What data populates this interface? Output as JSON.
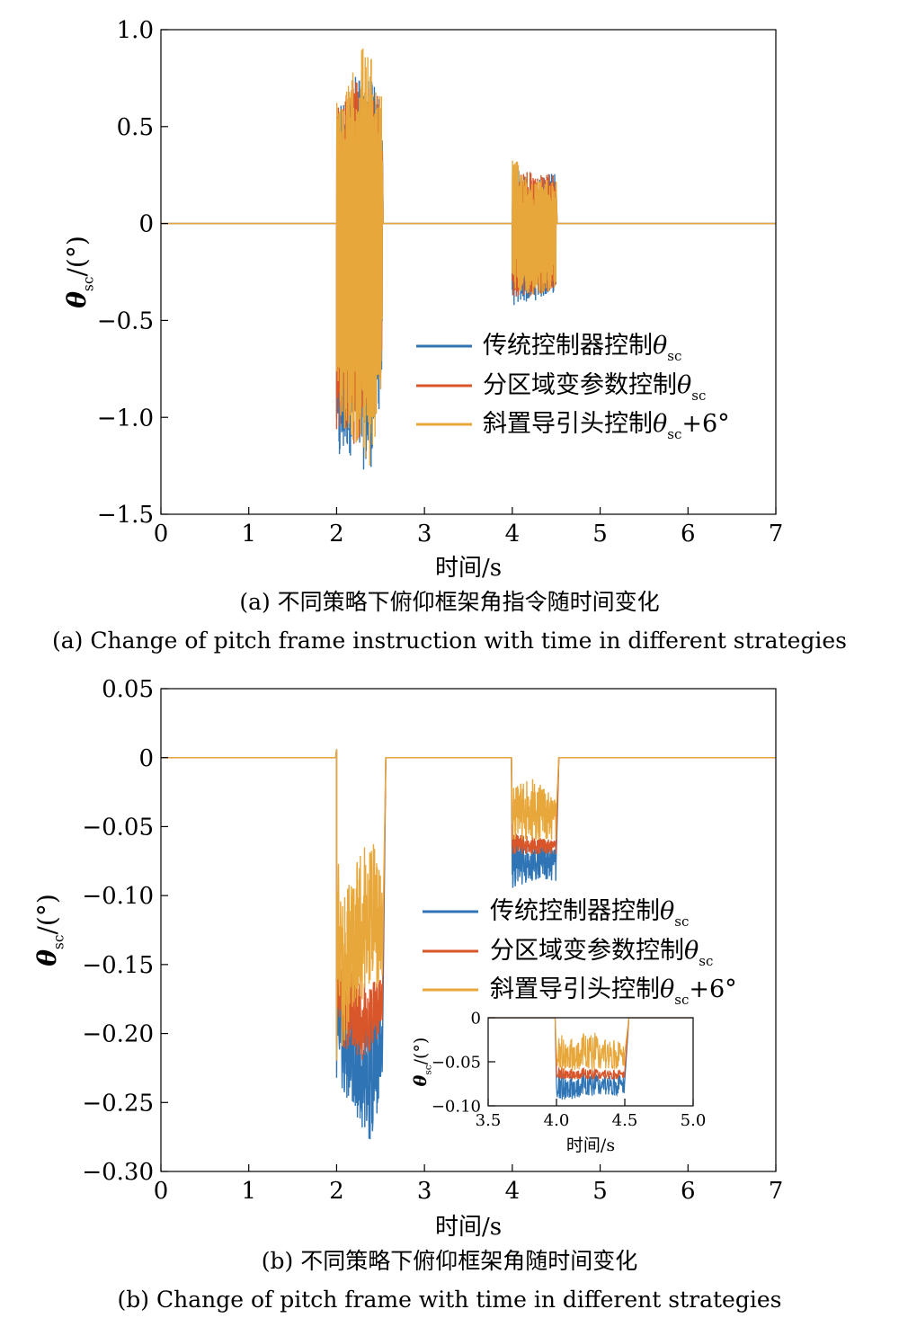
{
  "colors": {
    "series1": "#2f75b5",
    "series2": "#d8562a",
    "series3": "#e7a73a"
  },
  "legend": [
    {
      "base": "传统控制器控制",
      "sym": "θ",
      "sub": "sc",
      "suffix": ""
    },
    {
      "base": "分区域变参数控制",
      "sym": "θ",
      "sub": "sc",
      "suffix": ""
    },
    {
      "base": "斜置导引头控制",
      "sym": "θ",
      "sub": "sc",
      "suffix": "+6°"
    }
  ],
  "captions": {
    "a_cn": "(a) 不同策略下俯仰框架角指令随时间变化",
    "a_en": "(a) Change of pitch frame instruction with time in different strategies",
    "b_cn": "(b) 不同策略下俯仰框架角随时间变化",
    "b_en": "(b) Change of pitch frame with time in different strategies"
  },
  "chart_data": [
    {
      "id": "a",
      "type": "line",
      "xlabel": "时间/s",
      "ylabel": {
        "sym": "θ",
        "sub": "sc",
        "unit": "/(°)"
      },
      "xlim": [
        0,
        7
      ],
      "ylim": [
        -1.5,
        1.0
      ],
      "xticks": [
        "0",
        "1",
        "2",
        "3",
        "4",
        "5",
        "6",
        "7"
      ],
      "yticks": [
        "1.0",
        "0.5",
        "0",
        "−0.5",
        "−1.0",
        "−1.5"
      ],
      "legend_position": "lower-right",
      "grid": false,
      "series": [
        {
          "key": "series1",
          "envelope": [
            [
              2.0,
              -1.32,
              0.62
            ],
            [
              2.12,
              -1.18,
              0.72
            ],
            [
              2.25,
              -1.25,
              0.78
            ],
            [
              2.38,
              -1.3,
              0.8
            ],
            [
              2.52,
              -0.85,
              0.66
            ],
            [
              4.0,
              -0.43,
              0.3
            ],
            [
              4.25,
              -0.4,
              0.22
            ],
            [
              4.5,
              -0.36,
              0.27
            ]
          ]
        },
        {
          "key": "series2",
          "envelope": [
            [
              2.0,
              -1.1,
              0.6
            ],
            [
              2.25,
              -1.15,
              0.75
            ],
            [
              2.52,
              -0.8,
              0.64
            ],
            [
              4.0,
              -0.4,
              0.28
            ],
            [
              4.5,
              -0.34,
              0.25
            ]
          ]
        },
        {
          "key": "series3",
          "envelope": [
            [
              2.0,
              -0.95,
              0.64
            ],
            [
              2.12,
              -1.1,
              0.7
            ],
            [
              2.3,
              -1.2,
              0.94
            ],
            [
              2.4,
              -1.3,
              0.85
            ],
            [
              2.52,
              -0.78,
              0.65
            ],
            [
              4.0,
              -0.35,
              0.35
            ],
            [
              4.25,
              -0.38,
              0.22
            ],
            [
              4.5,
              -0.33,
              0.25
            ]
          ]
        }
      ],
      "baseline": 0
    },
    {
      "id": "b",
      "type": "line",
      "xlabel": "时间/s",
      "ylabel": {
        "sym": "θ",
        "sub": "sc",
        "unit": "/(°)"
      },
      "xlim": [
        0,
        7
      ],
      "ylim": [
        -0.3,
        0.05
      ],
      "xticks": [
        "0",
        "1",
        "2",
        "3",
        "4",
        "5",
        "6",
        "7"
      ],
      "yticks": [
        "0.05",
        "0",
        "−0.05",
        "−0.10",
        "−0.15",
        "−0.20",
        "−0.25",
        "−0.30"
      ],
      "legend_position": "right",
      "grid": false,
      "series": [
        {
          "key": "series1",
          "min": [
            [
              2.0,
              -0.235
            ],
            [
              2.2,
              -0.26
            ],
            [
              2.4,
              -0.28
            ],
            [
              2.52,
              -0.24
            ],
            [
              4.0,
              -0.095
            ],
            [
              4.3,
              -0.088
            ],
            [
              4.5,
              -0.09
            ]
          ],
          "max": [
            [
              2.0,
              -0.15
            ],
            [
              2.2,
              -0.19
            ],
            [
              2.4,
              -0.17
            ],
            [
              2.52,
              -0.19
            ],
            [
              4.0,
              -0.06
            ],
            [
              4.5,
              -0.065
            ]
          ]
        },
        {
          "key": "series2",
          "min": [
            [
              2.0,
              -0.21
            ],
            [
              2.3,
              -0.22
            ],
            [
              2.52,
              -0.2
            ],
            [
              4.0,
              -0.07
            ],
            [
              4.5,
              -0.07
            ]
          ],
          "max": [
            [
              2.0,
              -0.14
            ],
            [
              2.3,
              -0.16
            ],
            [
              2.52,
              -0.16
            ],
            [
              4.0,
              -0.055
            ],
            [
              4.5,
              -0.06
            ]
          ]
        },
        {
          "key": "series3",
          "min": [
            [
              2.0,
              -0.225
            ],
            [
              2.2,
              -0.19
            ],
            [
              2.4,
              -0.16
            ],
            [
              2.52,
              -0.18
            ],
            [
              4.0,
              -0.06
            ],
            [
              4.5,
              -0.06
            ]
          ],
          "max": [
            [
              2.0,
              -0.07
            ],
            [
              2.1,
              -0.1
            ],
            [
              2.3,
              -0.06
            ],
            [
              2.4,
              -0.05
            ],
            [
              2.52,
              -0.09
            ],
            [
              4.0,
              -0.02
            ],
            [
              4.25,
              -0.015
            ],
            [
              4.5,
              -0.03
            ]
          ]
        }
      ],
      "spike": {
        "x": 2.0,
        "y": 0.006
      },
      "inset": {
        "xlim": [
          3.5,
          5.0
        ],
        "ylim": [
          -0.1,
          0.0
        ],
        "xticks": [
          "3.5",
          "4.0",
          "4.5",
          "5.0"
        ],
        "yticks": [
          "0",
          "−0.05",
          "−0.10"
        ],
        "xlabel": "时间/s",
        "ylabel": {
          "sym": "θ",
          "sub": "sc",
          "unit": "/(°)"
        }
      }
    }
  ]
}
